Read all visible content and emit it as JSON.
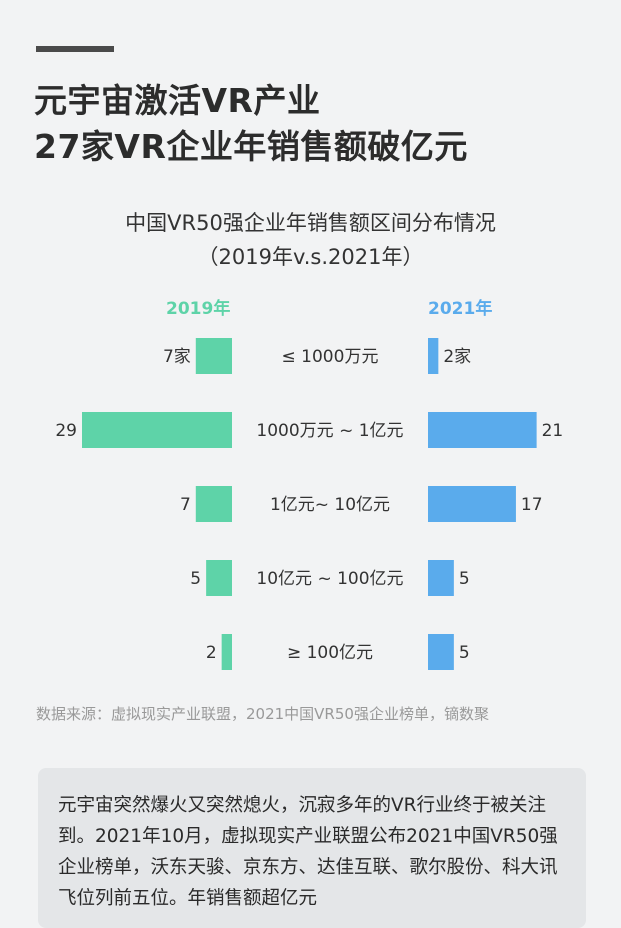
{
  "header": {
    "headline_line1": "元宇宙激活VR产业",
    "headline_line2": "27家VR企业年销售额破亿元"
  },
  "chart_data": {
    "type": "bar",
    "orientation": "horizontal-butterfly",
    "title": "中国VR50强企业年销售额区间分布情况",
    "subtitle": "（2019年v.s.2021年）",
    "categories": [
      "≤ 1000万元",
      "1000万元 ~ 1亿元",
      "1亿元~ 10亿元",
      "10亿元 ~ 100亿元",
      "≥ 100亿元"
    ],
    "series": [
      {
        "name": "2019年",
        "values": [
          7,
          29,
          7,
          5,
          2
        ],
        "labels": [
          "7家",
          "29",
          "7",
          "5",
          "2"
        ],
        "color": "#5ed3a8",
        "direction": "left"
      },
      {
        "name": "2021年",
        "values": [
          2,
          21,
          17,
          5,
          5
        ],
        "labels": [
          "2家",
          "21",
          "17",
          "5",
          "5"
        ],
        "color": "#5aabec",
        "direction": "right"
      }
    ],
    "xlim": [
      0,
      29
    ],
    "grid": false,
    "legend_placement": "top"
  },
  "footer": {
    "source": "数据来源：虚拟现实产业联盟，2021中国VR50强企业榜单，镝数聚"
  },
  "body_text": "元宇宙突然爆火又突然熄火，沉寂多年的VR行业终于被关注到。2021年10月，虚拟现实产业联盟公布2021中国VR50强企业榜单，沃东天骏、京东方、达佳互联、歌尔股份、科大讯飞位列前五位。年销售额超亿元"
}
